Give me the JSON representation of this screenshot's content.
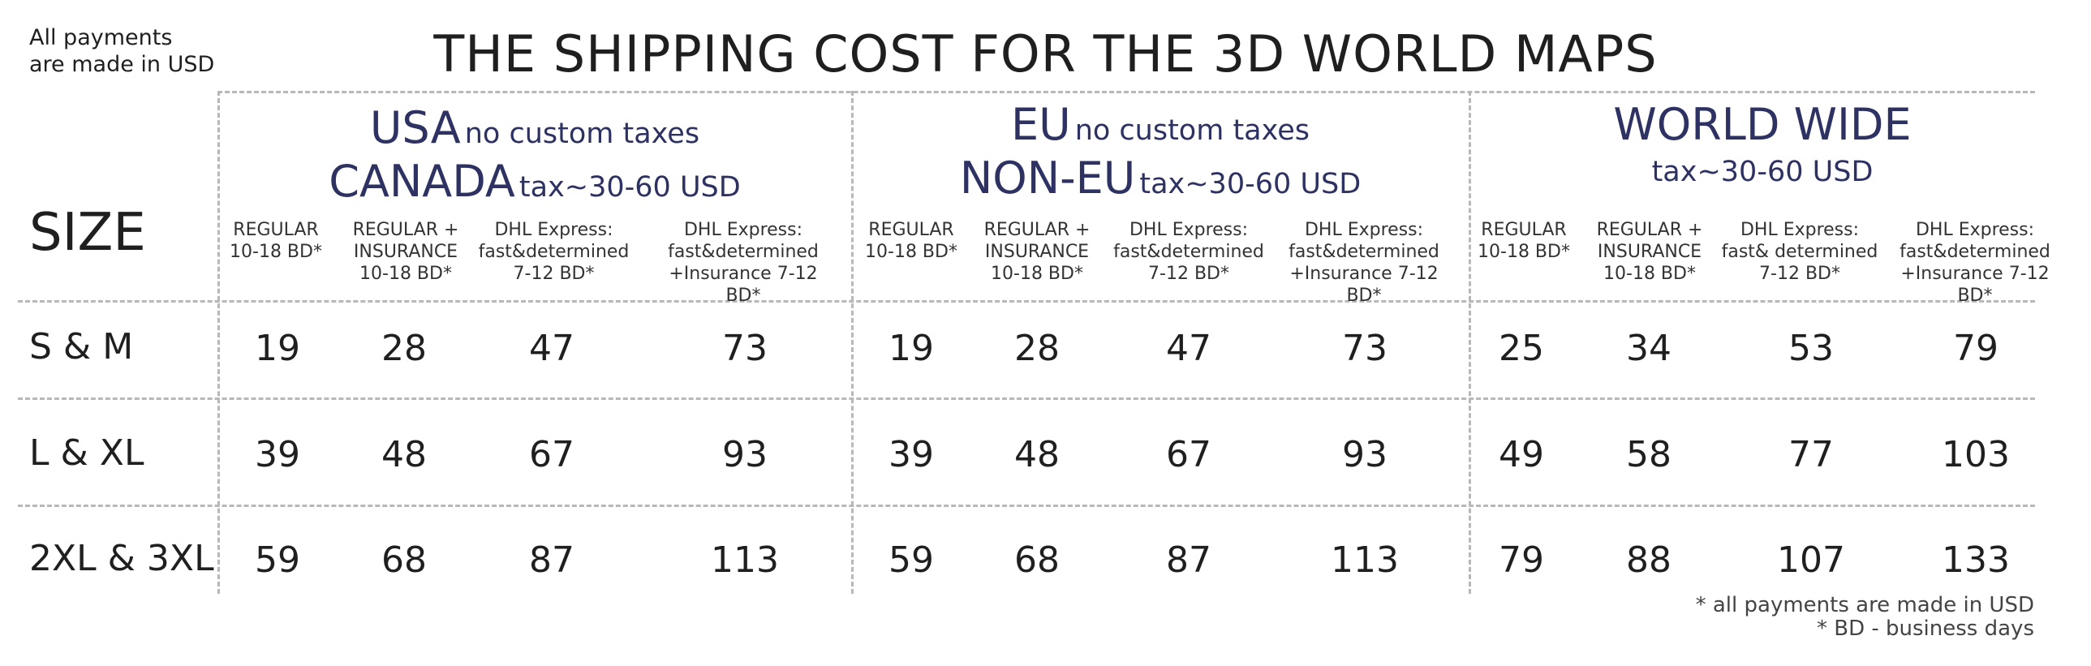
{
  "note": {
    "line1": "All payments",
    "line2": "are made in USD"
  },
  "title": "THE SHIPPING COST FOR THE 3D WORLD MAPS",
  "size_header": "SIZE",
  "regions": [
    {
      "l1_big": "USA",
      "l1_small": "no custom taxes",
      "l2_big": "CANADA",
      "l2_small": "tax~30-60 USD"
    },
    {
      "l1_big": "EU",
      "l1_small": "no custom taxes",
      "l2_big": "NON-EU",
      "l2_small": "tax~30-60 USD"
    },
    {
      "l1_big": "WORLD WIDE",
      "l2_small": "tax~30-60 USD"
    }
  ],
  "columns": {
    "c1": [
      "REGULAR",
      "10-18 BD*"
    ],
    "c2": [
      "REGULAR +",
      "INSURANCE",
      "10-18 BD*"
    ],
    "c3": [
      "DHL Express:",
      "fast&determined",
      "7-12 BD*"
    ],
    "c3ww": [
      "DHL Express:",
      "fast& determined",
      "7-12 BD*"
    ],
    "c4": [
      "DHL Express:",
      "fast&determined",
      "+Insurance 7-12 BD*"
    ]
  },
  "rows": [
    {
      "size": "S & M",
      "values": [
        "19",
        "28",
        "47",
        "73",
        "19",
        "28",
        "47",
        "73",
        "25",
        "34",
        "53",
        "79"
      ]
    },
    {
      "size": "L & XL",
      "values": [
        "39",
        "48",
        "67",
        "93",
        "39",
        "48",
        "67",
        "93",
        "49",
        "58",
        "77",
        "103"
      ]
    },
    {
      "size": "2XL & 3XL",
      "values": [
        "59",
        "68",
        "87",
        "113",
        "59",
        "68",
        "87",
        "113",
        "79",
        "88",
        "107",
        "133"
      ]
    }
  ],
  "footnotes": {
    "f1": "* all payments are made in USD",
    "f2": "* BD - business days"
  }
}
